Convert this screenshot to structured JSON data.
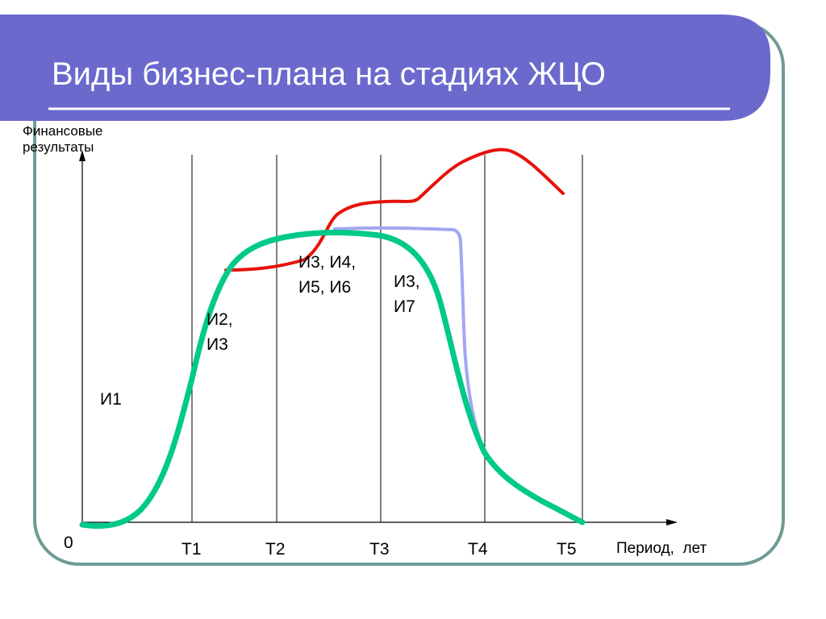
{
  "slide": {
    "title": "Виды бизнес-плана на стадиях ЖЦО",
    "colors": {
      "header_band": "#6B69CC",
      "frame_border": "#6F9A96",
      "curve_green": "#00C98A",
      "curve_red": "#E8120C",
      "curve_lavender": "#A3A6F2"
    }
  },
  "diagram": {
    "y_axis_label": "Финансовые результаты",
    "x_axis_label": "Период,  лет",
    "origin_label": "0",
    "ticks": [
      "Т1",
      "Т2",
      "Т3",
      "Т4",
      "Т5"
    ],
    "stage_labels": {
      "s1": "И1",
      "s2_line1": "И2,",
      "s2_line2": "И3",
      "s3_line1": "И3, И4,",
      "s3_line2": "И5, И6",
      "s4_line1": "И3,",
      "s4_line2": "И7"
    }
  }
}
